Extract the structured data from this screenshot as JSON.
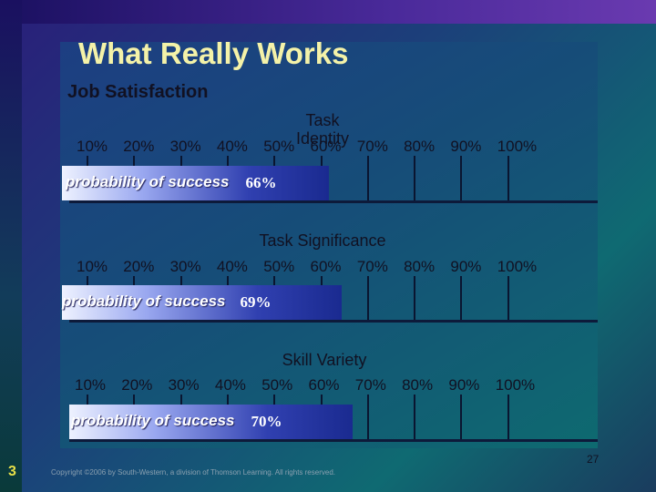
{
  "slide": {
    "title": "What Really Works",
    "subtitle": "Job Satisfaction",
    "slide_number": "3",
    "page_number": "27",
    "footer": "Copyright ©2006 by South-Western, a division of Thomson Learning.  All rights reserved."
  },
  "chart_data": [
    {
      "type": "bar",
      "orientation": "horizontal",
      "title": "Task\nIdentity",
      "tick_labels": [
        "10%",
        "20%",
        "30%",
        "40%",
        "50%",
        "60%",
        "70%",
        "80%",
        "90%",
        "100%"
      ],
      "xlim": [
        0,
        100
      ],
      "categories": [
        "probability of success"
      ],
      "values": [
        66
      ],
      "value_label": "66%"
    },
    {
      "type": "bar",
      "orientation": "horizontal",
      "title": "Task Significance",
      "tick_labels": [
        "10%",
        "20%",
        "30%",
        "40%",
        "50%",
        "60%",
        "70%",
        "80%",
        "90%",
        "100%"
      ],
      "xlim": [
        0,
        100
      ],
      "categories": [
        "probability of success"
      ],
      "values": [
        69
      ],
      "value_label": "69%"
    },
    {
      "type": "bar",
      "orientation": "horizontal",
      "title": "Skill Variety",
      "tick_labels": [
        "10%",
        "20%",
        "30%",
        "40%",
        "50%",
        "60%",
        "70%",
        "80%",
        "90%",
        "100%"
      ],
      "xlim": [
        0,
        100
      ],
      "categories": [
        "probability of success"
      ],
      "values": [
        70
      ],
      "value_label": "70%"
    }
  ]
}
